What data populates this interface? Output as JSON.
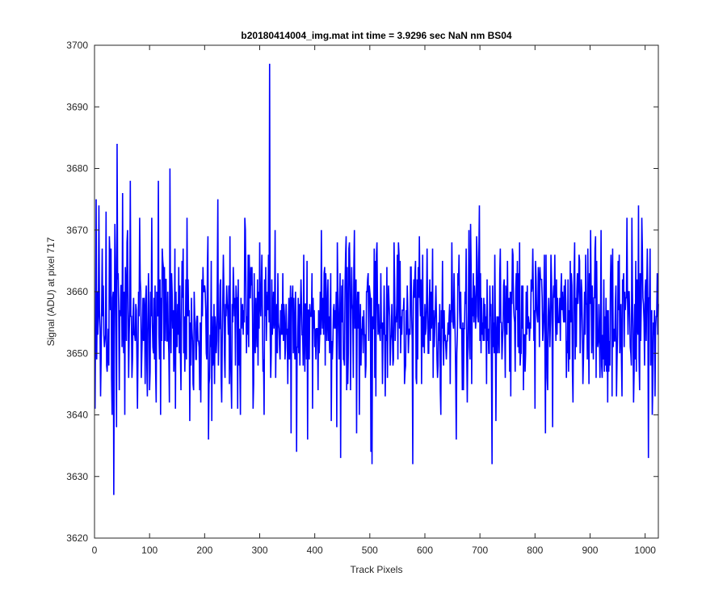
{
  "chart_data": {
    "type": "line",
    "title": "b20180414004_img.mat int time = 3.9296 sec  NaN nm BS04",
    "xlabel": "Track Pixels",
    "ylabel": "Signal (ADU) at pixel 717",
    "xlim": [
      0,
      1024
    ],
    "ylim": [
      3620,
      3700
    ],
    "xticks": [
      0,
      100,
      200,
      300,
      400,
      500,
      600,
      700,
      800,
      900,
      1000
    ],
    "yticks": [
      3620,
      3630,
      3640,
      3650,
      3660,
      3670,
      3680,
      3690,
      3700
    ],
    "grid": false,
    "legend": "none",
    "series": [
      {
        "color": "#0000ff",
        "generator": {
          "n_points": 1024,
          "mean": 3655.5,
          "std": 6.6,
          "seed": 20180414
        },
        "points": [
          [
            1,
            3641
          ],
          [
            3,
            3675
          ],
          [
            5,
            3660
          ],
          [
            8,
            3674
          ],
          [
            10,
            3654
          ],
          [
            14,
            3667
          ],
          [
            17,
            3653
          ],
          [
            21,
            3673
          ],
          [
            23,
            3647
          ],
          [
            27,
            3669
          ],
          [
            32,
            3640
          ],
          [
            35,
            3627
          ],
          [
            37,
            3671
          ],
          [
            40,
            3638
          ],
          [
            41,
            3684
          ],
          [
            45,
            3644
          ],
          [
            51,
            3676
          ],
          [
            55,
            3640
          ],
          [
            59,
            3668
          ],
          [
            78,
            3641
          ],
          [
            82,
            3672
          ],
          [
            100,
            3644
          ],
          [
            104,
            3672
          ],
          [
            112,
            3642
          ],
          [
            116,
            3678
          ],
          [
            136,
            3642
          ],
          [
            137,
            3680
          ],
          [
            157,
            3644
          ],
          [
            168,
            3672
          ],
          [
            180,
            3644
          ],
          [
            184,
            3649
          ],
          [
            193,
            3642
          ],
          [
            206,
            3669
          ],
          [
            213,
            3639
          ],
          [
            224,
            3675
          ],
          [
            231,
            3642
          ],
          [
            246,
            3669
          ],
          [
            260,
            3641
          ],
          [
            274,
            3670
          ],
          [
            288,
            3641
          ],
          [
            304,
            3666
          ],
          [
            300,
            3668
          ],
          [
            316,
            3666
          ],
          [
            318,
            3697
          ],
          [
            320,
            3646
          ],
          [
            322,
            3662
          ],
          [
            336,
            3651
          ],
          [
            350,
            3654
          ],
          [
            357,
            3637
          ],
          [
            380,
            3666
          ],
          [
            396,
            3641
          ],
          [
            412,
            3670
          ],
          [
            430,
            3639
          ],
          [
            441,
            3668
          ],
          [
            447,
            3633
          ],
          [
            472,
            3670
          ],
          [
            476,
            3637
          ],
          [
            504,
            3632
          ],
          [
            512,
            3666
          ],
          [
            528,
            3643
          ],
          [
            544,
            3668
          ],
          [
            578,
            3632
          ],
          [
            596,
            3666
          ],
          [
            608,
            3658
          ],
          [
            632,
            3665
          ],
          [
            657,
            3636
          ],
          [
            677,
            3642
          ],
          [
            698,
            3666
          ],
          [
            722,
            3632
          ],
          [
            744,
            3662
          ],
          [
            760,
            3666
          ],
          [
            779,
            3644
          ],
          [
            796,
            3667
          ],
          [
            819,
            3637
          ],
          [
            829,
            3666
          ],
          [
            832,
            3638
          ],
          [
            847,
            3660
          ],
          [
            876,
            3660
          ],
          [
            880,
            3666
          ],
          [
            901,
            3670
          ],
          [
            930,
            3647
          ],
          [
            947,
            3661
          ],
          [
            958,
            3643
          ],
          [
            970,
            3660
          ],
          [
            988,
            3674
          ],
          [
            994,
            3672
          ],
          [
            999,
            3648
          ],
          [
            1006,
            3633
          ],
          [
            1009,
            3667
          ],
          [
            1013,
            3640
          ],
          [
            1018,
            3643
          ],
          [
            1021,
            3656
          ]
        ]
      }
    ]
  }
}
